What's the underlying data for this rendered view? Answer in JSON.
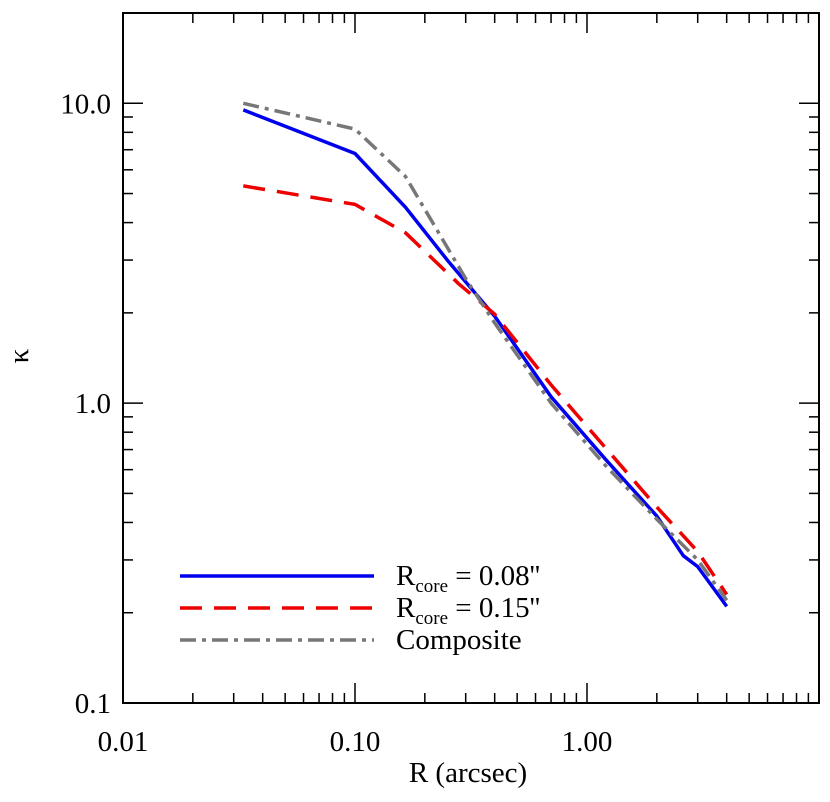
{
  "chart_data": {
    "type": "line",
    "x_scale": "log",
    "y_scale": "log",
    "xlim": [
      0.01,
      10
    ],
    "ylim": [
      0.1,
      20
    ],
    "xlabel": "R (arcsec)",
    "ylabel": "κ",
    "x_ticks": [
      0.01,
      0.1,
      1.0
    ],
    "x_tick_labels": [
      "0.01",
      "0.10",
      "1.00"
    ],
    "y_ticks": [
      0.1,
      1.0,
      10.0
    ],
    "y_tick_labels": [
      "0.1",
      "1.0",
      "10.0"
    ],
    "legend_position": "bottom-left",
    "series": [
      {
        "name_main": "R",
        "name_sub": "core",
        "name_tail": " = 0.08''",
        "color": "#0000ee",
        "style": "solid",
        "points": [
          [
            0.033,
            9.5
          ],
          [
            0.1,
            6.8
          ],
          [
            0.165,
            4.5
          ],
          [
            0.25,
            3.0
          ],
          [
            0.4,
            1.95
          ],
          [
            0.7,
            1.05
          ],
          [
            1.2,
            0.65
          ],
          [
            2.0,
            0.42
          ],
          [
            2.6,
            0.31
          ],
          [
            3.0,
            0.285
          ],
          [
            4.0,
            0.21
          ]
        ]
      },
      {
        "name_main": "R",
        "name_sub": "core",
        "name_tail": " = 0.15''",
        "color": "#ee0000",
        "style": "dashed",
        "points": [
          [
            0.033,
            5.3
          ],
          [
            0.1,
            4.6
          ],
          [
            0.165,
            3.7
          ],
          [
            0.28,
            2.5
          ],
          [
            0.4,
            1.98
          ],
          [
            0.7,
            1.15
          ],
          [
            1.2,
            0.71
          ],
          [
            2.0,
            0.45
          ],
          [
            3.0,
            0.32
          ],
          [
            4.0,
            0.23
          ]
        ]
      },
      {
        "name_main": "Composite",
        "name_sub": "",
        "name_tail": "",
        "color": "#777777",
        "style": "dashdot",
        "points": [
          [
            0.033,
            10.0
          ],
          [
            0.1,
            8.2
          ],
          [
            0.165,
            5.7
          ],
          [
            0.3,
            2.6
          ],
          [
            0.4,
            1.85
          ],
          [
            0.7,
            1.0
          ],
          [
            1.2,
            0.62
          ],
          [
            2.0,
            0.41
          ],
          [
            3.0,
            0.3
          ],
          [
            4.0,
            0.22
          ]
        ]
      }
    ]
  }
}
